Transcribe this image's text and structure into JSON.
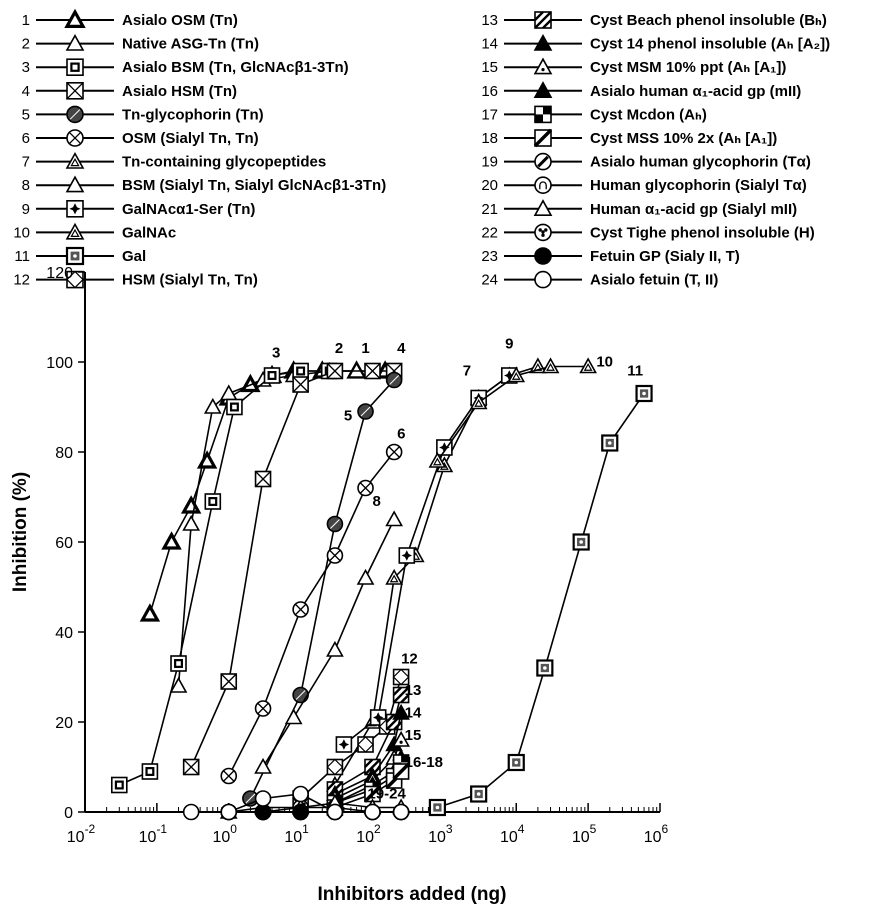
{
  "legend": [
    {
      "num": "1",
      "label": "Asialo OSM (Tn)",
      "marker": "triangle-bold"
    },
    {
      "num": "2",
      "label": "Native ASG-Tn (Tn)",
      "marker": "triangle-open"
    },
    {
      "num": "3",
      "label": "Asialo BSM (Tn, GlcNAcβ1-3Tn)",
      "marker": "square-in-square"
    },
    {
      "num": "4",
      "label": "Asialo HSM (Tn)",
      "marker": "square-x"
    },
    {
      "num": "5",
      "label": "Tn-glycophorin (Tn)",
      "marker": "circle-hatched"
    },
    {
      "num": "6",
      "label": "OSM (Sialyl Tn, Tn)",
      "marker": "circle-x"
    },
    {
      "num": "7",
      "label": "Tn-containing glycopeptides",
      "marker": "triangle-inner"
    },
    {
      "num": "8",
      "label": "BSM (Sialyl Tn, Sialyl GlcNAcβ1-3Tn)",
      "marker": "triangle-open"
    },
    {
      "num": "9",
      "label": "GalNAcα1-Ser (Tn)",
      "marker": "square-star"
    },
    {
      "num": "10",
      "label": "GalNAc",
      "marker": "triangle-inner"
    },
    {
      "num": "11",
      "label": "Gal",
      "marker": "square-dotted"
    },
    {
      "num": "12",
      "label": "HSM (Sialyl Tn, Tn)",
      "marker": "square-diamond"
    },
    {
      "num": "13",
      "label": "Cyst Beach phenol insoluble (Bₕ)",
      "marker": "square-hatched"
    },
    {
      "num": "14",
      "label": "Cyst 14 phenol insoluble (Aₕ [A₂])",
      "marker": "triangle-filled"
    },
    {
      "num": "15",
      "label": "Cyst MSM 10% ppt (Aₕ [A₁])",
      "marker": "triangle-dot"
    },
    {
      "num": "16",
      "label": "Asialo human α₁-acid gp (mII)",
      "marker": "triangle-filled"
    },
    {
      "num": "17",
      "label": "Cyst Mcdon (Aₕ)",
      "marker": "square-quarters"
    },
    {
      "num": "18",
      "label": "Cyst MSS 10% 2x (Aₕ [A₁])",
      "marker": "square-slash"
    },
    {
      "num": "19",
      "label": "Asialo human glycophorin (Tα)",
      "marker": "circle-slash"
    },
    {
      "num": "20",
      "label": "Human glycophorin (Sialyl Tα)",
      "marker": "circle-arch"
    },
    {
      "num": "21",
      "label": "Human α₁-acid gp (Sialyl mII)",
      "marker": "triangle-open"
    },
    {
      "num": "22",
      "label": "Cyst Tighe phenol insoluble (H)",
      "marker": "circle-dots"
    },
    {
      "num": "23",
      "label": "Fetuin GP (Sialy II, T)",
      "marker": "circle-filled"
    },
    {
      "num": "24",
      "label": "Asialo fetuin (T, II)",
      "marker": "circle-open"
    }
  ],
  "chart_data": {
    "type": "line",
    "x_scale": "log",
    "xlim": [
      0.01,
      1000000
    ],
    "ylim": [
      0,
      120
    ],
    "xlabel": "Inhibitors added (ng)",
    "ylabel": "Inhibition (%)",
    "x_ticks": [
      {
        "value": 0.01,
        "base": "10",
        "exp": "-2"
      },
      {
        "value": 0.1,
        "base": "10",
        "exp": "-1"
      },
      {
        "value": 1,
        "base": "10",
        "exp": "0"
      },
      {
        "value": 10,
        "base": "10",
        "exp": "1"
      },
      {
        "value": 100,
        "base": "10",
        "exp": "2"
      },
      {
        "value": 1000,
        "base": "10",
        "exp": "3"
      },
      {
        "value": 10000,
        "base": "10",
        "exp": "4"
      },
      {
        "value": 100000,
        "base": "10",
        "exp": "5"
      },
      {
        "value": 1000000,
        "base": "10",
        "exp": "6"
      }
    ],
    "y_ticks": [
      0,
      20,
      40,
      60,
      80,
      100,
      120
    ],
    "grid": false,
    "series": [
      {
        "id": "1",
        "marker": "triangle-bold",
        "points": [
          [
            0.08,
            44
          ],
          [
            0.16,
            60
          ],
          [
            0.3,
            68
          ],
          [
            0.5,
            78
          ],
          [
            1,
            92
          ],
          [
            2,
            95
          ],
          [
            4,
            97
          ],
          [
            8,
            98
          ],
          [
            20,
            98
          ],
          [
            60,
            98
          ],
          [
            150,
            98
          ]
        ]
      },
      {
        "id": "2",
        "marker": "triangle-open",
        "points": [
          [
            0.2,
            28
          ],
          [
            0.3,
            64
          ],
          [
            0.6,
            90
          ],
          [
            1,
            93
          ],
          [
            3,
            96
          ],
          [
            8,
            97
          ],
          [
            25,
            98
          ],
          [
            60,
            98
          ]
        ]
      },
      {
        "id": "3",
        "marker": "square-in-square",
        "points": [
          [
            0.03,
            6
          ],
          [
            0.08,
            9
          ],
          [
            0.2,
            33
          ],
          [
            0.6,
            69
          ],
          [
            1.2,
            90
          ],
          [
            4,
            97
          ],
          [
            10,
            98
          ],
          [
            25,
            98
          ]
        ]
      },
      {
        "id": "4",
        "marker": "square-x",
        "points": [
          [
            0.3,
            10
          ],
          [
            1,
            29
          ],
          [
            3,
            74
          ],
          [
            10,
            95
          ],
          [
            30,
            98
          ],
          [
            100,
            98
          ],
          [
            200,
            98
          ]
        ]
      },
      {
        "id": "5",
        "marker": "circle-hatched",
        "points": [
          [
            2,
            3
          ],
          [
            10,
            26
          ],
          [
            30,
            64
          ],
          [
            80,
            89
          ],
          [
            200,
            96
          ]
        ]
      },
      {
        "id": "6",
        "marker": "circle-x",
        "points": [
          [
            1,
            8
          ],
          [
            3,
            23
          ],
          [
            10,
            45
          ],
          [
            30,
            57
          ],
          [
            80,
            72
          ],
          [
            200,
            80
          ]
        ]
      },
      {
        "id": "7",
        "marker": "triangle-inner",
        "points": [
          [
            30,
            6
          ],
          [
            100,
            20
          ],
          [
            200,
            52
          ],
          [
            400,
            57
          ],
          [
            1000,
            77
          ],
          [
            3000,
            92
          ],
          [
            8000,
            97
          ],
          [
            20000,
            99
          ]
        ]
      },
      {
        "id": "8",
        "marker": "triangle-open",
        "points": [
          [
            3,
            10
          ],
          [
            8,
            21
          ],
          [
            30,
            36
          ],
          [
            80,
            52
          ],
          [
            200,
            65
          ]
        ]
      },
      {
        "id": "9",
        "marker": "square-star",
        "points": [
          [
            40,
            15
          ],
          [
            120,
            21
          ],
          [
            300,
            57
          ],
          [
            1000,
            81
          ],
          [
            3000,
            92
          ],
          [
            8000,
            97
          ]
        ]
      },
      {
        "id": "10",
        "marker": "triangle-inner",
        "points": [
          [
            800,
            78
          ],
          [
            3000,
            91
          ],
          [
            10000,
            97
          ],
          [
            30000,
            99
          ],
          [
            100000,
            99
          ]
        ]
      },
      {
        "id": "11",
        "marker": "square-dotted",
        "points": [
          [
            800,
            1
          ],
          [
            3000,
            4
          ],
          [
            10000,
            11
          ],
          [
            25000,
            32
          ],
          [
            80000,
            60
          ],
          [
            200000,
            82
          ],
          [
            600000,
            93
          ]
        ]
      },
      {
        "id": "12",
        "marker": "square-diamond",
        "points": [
          [
            10,
            3
          ],
          [
            30,
            10
          ],
          [
            80,
            15
          ],
          [
            160,
            19
          ],
          [
            250,
            30
          ]
        ]
      },
      {
        "id": "13",
        "marker": "square-hatched",
        "points": [
          [
            30,
            5
          ],
          [
            100,
            10
          ],
          [
            200,
            20
          ],
          [
            250,
            26
          ]
        ]
      },
      {
        "id": "14",
        "marker": "triangle-filled",
        "points": [
          [
            30,
            4
          ],
          [
            100,
            8
          ],
          [
            200,
            15
          ],
          [
            250,
            22
          ]
        ]
      },
      {
        "id": "15",
        "marker": "triangle-dot",
        "points": [
          [
            30,
            3
          ],
          [
            100,
            7
          ],
          [
            200,
            12
          ],
          [
            250,
            16
          ]
        ]
      },
      {
        "id": "16",
        "marker": "triangle-filled",
        "points": [
          [
            30,
            2
          ],
          [
            100,
            6
          ],
          [
            200,
            9
          ],
          [
            250,
            12
          ]
        ]
      },
      {
        "id": "17",
        "marker": "square-quarters",
        "points": [
          [
            30,
            2
          ],
          [
            100,
            5
          ],
          [
            200,
            8
          ],
          [
            250,
            11
          ]
        ]
      },
      {
        "id": "18",
        "marker": "square-slash",
        "points": [
          [
            30,
            1
          ],
          [
            100,
            4
          ],
          [
            200,
            7
          ],
          [
            250,
            9
          ]
        ]
      },
      {
        "id": "19",
        "marker": "circle-slash",
        "points": [
          [
            1,
            0
          ],
          [
            3,
            0
          ],
          [
            10,
            1
          ],
          [
            30,
            1
          ],
          [
            100,
            0
          ],
          [
            250,
            0
          ]
        ]
      },
      {
        "id": "20",
        "marker": "circle-arch",
        "points": [
          [
            1,
            0
          ],
          [
            3,
            0
          ],
          [
            10,
            0
          ],
          [
            30,
            0
          ],
          [
            100,
            0
          ],
          [
            250,
            0
          ]
        ]
      },
      {
        "id": "21",
        "marker": "triangle-open",
        "points": [
          [
            1,
            0
          ],
          [
            3,
            1
          ],
          [
            10,
            1
          ],
          [
            30,
            2
          ],
          [
            100,
            1
          ],
          [
            250,
            1
          ]
        ]
      },
      {
        "id": "22",
        "marker": "circle-dots",
        "points": [
          [
            1,
            0
          ],
          [
            3,
            0
          ],
          [
            10,
            0
          ],
          [
            30,
            0
          ],
          [
            100,
            0
          ],
          [
            250,
            0
          ]
        ]
      },
      {
        "id": "23",
        "marker": "circle-filled",
        "points": [
          [
            3,
            0
          ],
          [
            10,
            0
          ]
        ]
      },
      {
        "id": "24",
        "marker": "circle-open",
        "points": [
          [
            0.3,
            0
          ],
          [
            1,
            0
          ],
          [
            3,
            3
          ],
          [
            10,
            4
          ],
          [
            30,
            0
          ],
          [
            100,
            0
          ],
          [
            250,
            0
          ]
        ]
      }
    ],
    "curve_labels": [
      {
        "text": "1",
        "x": 70,
        "y": 102
      },
      {
        "text": "2",
        "x": 30,
        "y": 102
      },
      {
        "text": "3",
        "x": 4,
        "y": 101
      },
      {
        "text": "4",
        "x": 220,
        "y": 102
      },
      {
        "text": "5",
        "x": 40,
        "y": 87
      },
      {
        "text": "6",
        "x": 220,
        "y": 83
      },
      {
        "text": "7",
        "x": 1800,
        "y": 97
      },
      {
        "text": "8",
        "x": 100,
        "y": 68
      },
      {
        "text": "9",
        "x": 7000,
        "y": 103
      },
      {
        "text": "10",
        "x": 130000,
        "y": 99
      },
      {
        "text": "11",
        "x": 350000,
        "y": 97
      },
      {
        "text": "12",
        "x": 250,
        "y": 33
      },
      {
        "text": "13",
        "x": 280,
        "y": 26
      },
      {
        "text": "14",
        "x": 280,
        "y": 21
      },
      {
        "text": "15",
        "x": 280,
        "y": 16
      },
      {
        "text": "16-18",
        "x": 280,
        "y": 10
      },
      {
        "text": "19-24",
        "x": 85,
        "y": 3
      }
    ]
  }
}
